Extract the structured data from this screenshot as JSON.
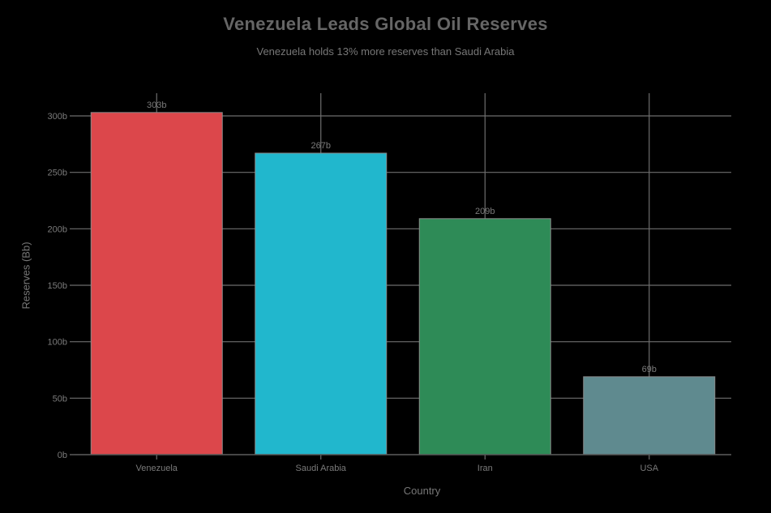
{
  "title": "Venezuela Leads Global Oil Reserves",
  "subtitle": "Venezuela holds 13% more reserves than Saudi Arabia",
  "chart_data": {
    "type": "bar",
    "title": "Venezuela Leads Global Oil Reserves",
    "subtitle": "Venezuela holds 13% more reserves than Saudi Arabia",
    "categories": [
      "Venezuela",
      "Saudi Arabia",
      "Iran",
      "USA"
    ],
    "values": [
      303,
      267,
      209,
      69
    ],
    "value_labels": [
      "303b",
      "267b",
      "209b",
      "69b"
    ],
    "colors": [
      "#dc474b",
      "#21b7cd",
      "#2e8b57",
      "#5f8a8f"
    ],
    "xlabel": "Country",
    "ylabel": "Reserves (Bb)",
    "ylim": [
      0,
      300
    ],
    "yticks": [
      0,
      50,
      100,
      150,
      200,
      250,
      300
    ],
    "ytick_labels": [
      "0b",
      "50b",
      "100b",
      "150b",
      "200b",
      "250b",
      "300b"
    ],
    "grid": true,
    "legend": false
  },
  "axes": {
    "xlabel": "Country",
    "ylabel": "Reserves (Bb)"
  }
}
